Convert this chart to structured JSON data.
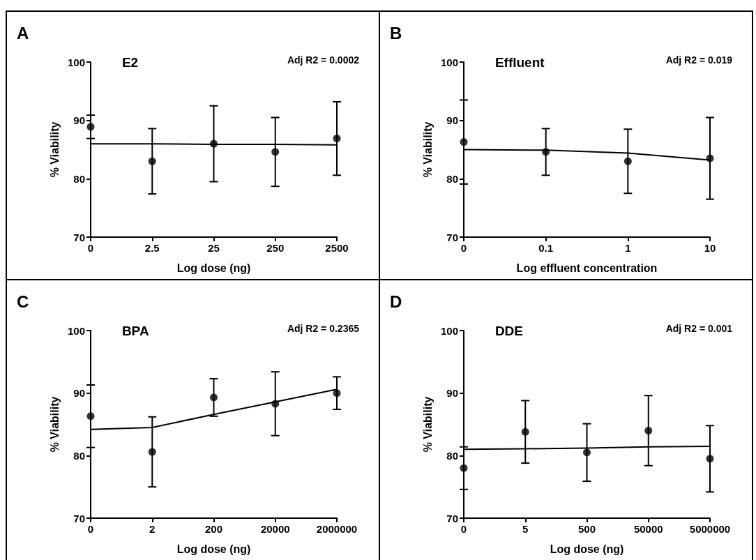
{
  "chart_data": [
    {
      "type": "scatter",
      "title": "E2",
      "xlabel": "Log dose (ng)",
      "ylabel": "% Viability",
      "annotations": [
        "A",
        "Adj R2 = 0.0002"
      ],
      "categories": [
        "0",
        "2.5",
        "25",
        "250",
        "2500"
      ],
      "ylim": [
        70,
        100
      ],
      "yticks": [
        70,
        80,
        90,
        100
      ],
      "series": [
        {
          "color": "#000000",
          "marker": "circle",
          "values": [
            88.9,
            83.0,
            86.0,
            84.6,
            86.9
          ],
          "errors": [
            2.0,
            5.6,
            6.5,
            5.9,
            6.3
          ]
        },
        {
          "type": "line",
          "color": "#000000",
          "marker": "none",
          "values": [
            86.0,
            86.0,
            85.9,
            85.9,
            85.8
          ]
        }
      ]
    },
    {
      "type": "scatter",
      "title": "Effluent",
      "xlabel": "Log effluent concentration",
      "ylabel": "% Viability",
      "annotations": [
        "B",
        "Adj R2 = 0.019"
      ],
      "categories": [
        "0",
        "0.1",
        "1",
        "10"
      ],
      "ylim": [
        70,
        100
      ],
      "yticks": [
        70,
        80,
        90,
        100
      ],
      "series": [
        {
          "color": "#000000",
          "marker": "circle",
          "values": [
            86.3,
            84.6,
            83.0,
            83.5
          ],
          "errors": [
            7.2,
            4.0,
            5.5,
            7.0
          ]
        },
        {
          "type": "line",
          "color": "#000000",
          "marker": "none",
          "values": [
            85.0,
            84.9,
            84.4,
            83.2
          ]
        }
      ]
    },
    {
      "type": "scatter",
      "title": "BPA",
      "xlabel": "Log dose (ng)",
      "ylabel": "% Viability",
      "annotations": [
        "C",
        "Adj R2 = 0.2365"
      ],
      "categories": [
        "0",
        "2",
        "200",
        "20000",
        "2000000"
      ],
      "ylim": [
        70,
        100
      ],
      "yticks": [
        70,
        80,
        90,
        100
      ],
      "series": [
        {
          "color": "#000000",
          "marker": "circle",
          "values": [
            86.3,
            80.6,
            89.3,
            88.3,
            90.0
          ],
          "errors": [
            5.0,
            5.6,
            3.0,
            5.1,
            2.6
          ]
        },
        {
          "type": "line",
          "color": "#000000",
          "marker": "none",
          "values": [
            84.2,
            84.5,
            86.6,
            88.6,
            90.6
          ]
        }
      ]
    },
    {
      "type": "scatter",
      "title": "DDE",
      "xlabel": "Log dose (ng)",
      "ylabel": "% Viability",
      "annotations": [
        "D",
        "Adj R2 = 0.001"
      ],
      "categories": [
        "0",
        "5",
        "500",
        "50000",
        "5000000"
      ],
      "ylim": [
        70,
        100
      ],
      "yticks": [
        70,
        80,
        90,
        100
      ],
      "series": [
        {
          "color": "#000000",
          "marker": "circle",
          "values": [
            78.0,
            83.8,
            80.5,
            84.0,
            79.5
          ],
          "errors": [
            3.4,
            5.0,
            4.6,
            5.6,
            5.3
          ]
        },
        {
          "type": "line",
          "color": "#000000",
          "marker": "none",
          "values": [
            81.0,
            81.1,
            81.2,
            81.4,
            81.5
          ]
        }
      ]
    }
  ]
}
